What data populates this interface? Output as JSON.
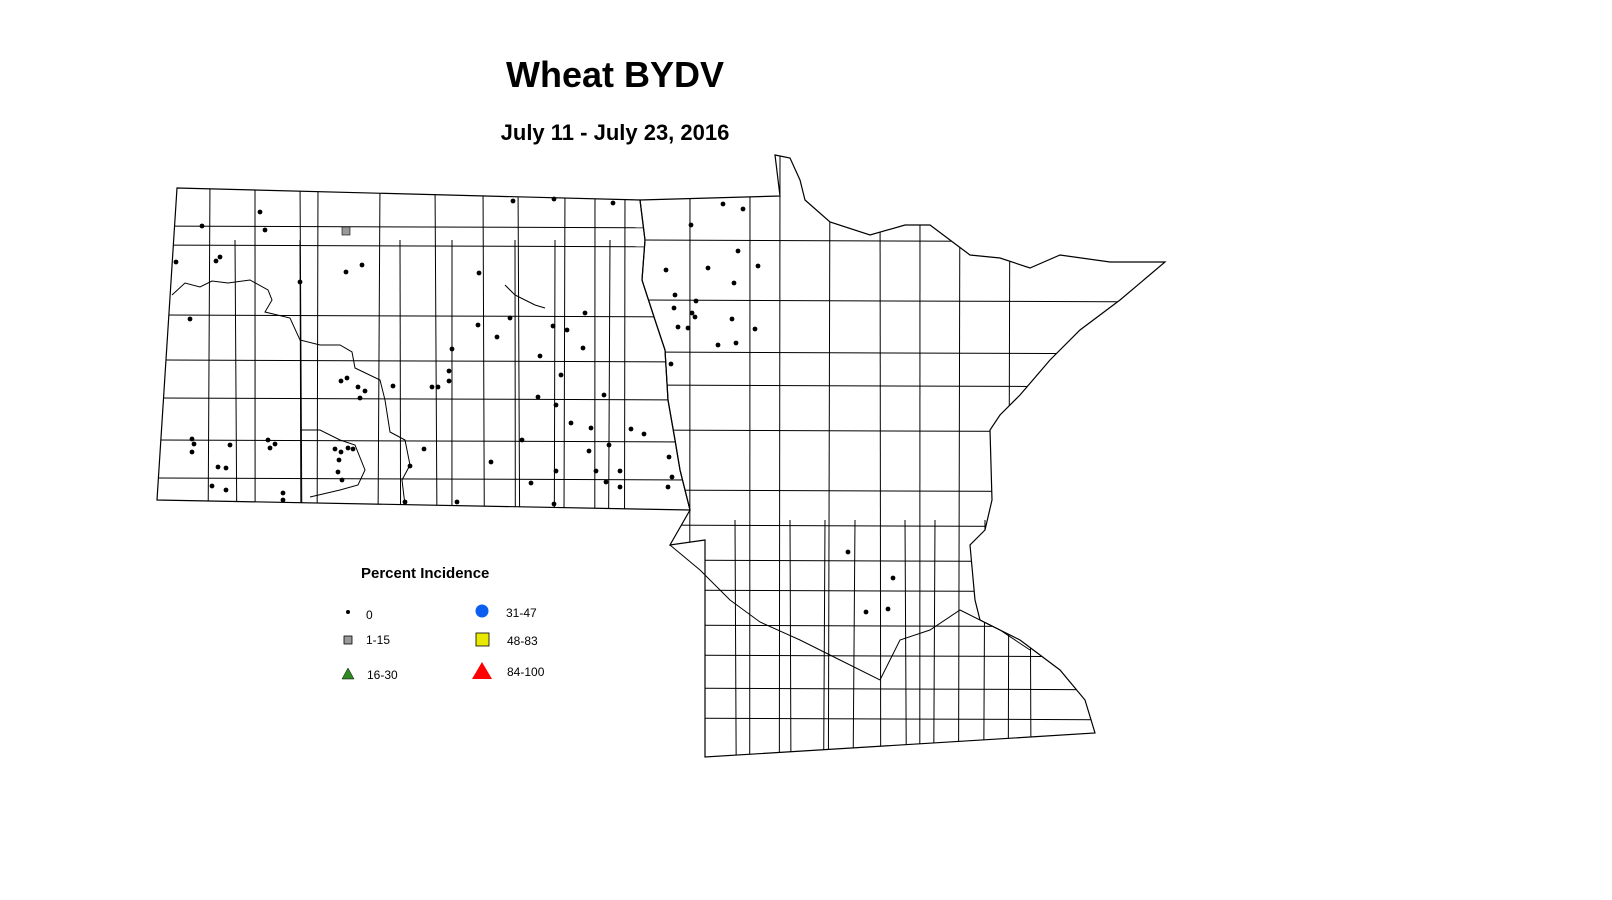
{
  "title": "Wheat BYDV",
  "subtitle": "July 11 - July 23, 2016",
  "legend": {
    "title": "Percent Incidence",
    "items": [
      {
        "label": "0",
        "symbol": "small-dot",
        "color": "#000000"
      },
      {
        "label": "1-15",
        "symbol": "square",
        "color": "#999999"
      },
      {
        "label": "16-30",
        "symbol": "triangle",
        "color": "#2e8b22"
      },
      {
        "label": "31-47",
        "symbol": "circle",
        "color": "#0a5ff0"
      },
      {
        "label": "48-83",
        "symbol": "square",
        "color": "#e8e800"
      },
      {
        "label": "84-100",
        "symbol": "triangle",
        "color": "#ff0000"
      }
    ]
  },
  "regions": [
    "North Dakota",
    "Minnesota"
  ]
}
